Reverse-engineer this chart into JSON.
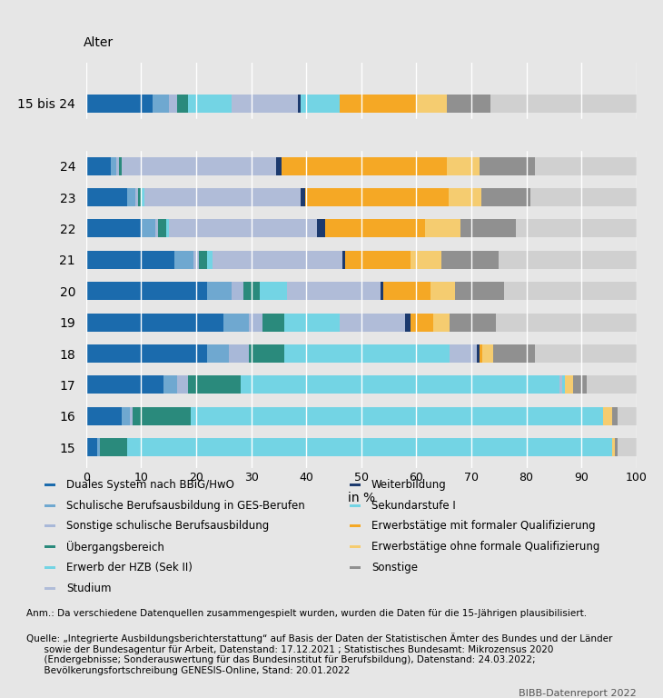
{
  "colors": [
    "#1b6bad",
    "#6fa8d0",
    "#a8b8d8",
    "#2a8a7c",
    "#73d4e4",
    "#b0bcd8",
    "#1c3a6e",
    "#73d4e4",
    "#f5a825",
    "#f5cc70",
    "#909090"
  ],
  "categories": [
    "Duales System nach BBiG/HwO",
    "Schulische Berufsausbildung in GES-Berufen",
    "Sonstige schulische Berufsausbildung",
    "Übergangsbereich",
    "Erwerb der HZB (Sek II)",
    "Studium",
    "Weiterbildung",
    "Sekundarstufe I",
    "Erwerbstätige mit formaler Qualifizierung",
    "Erwerbstätige ohne formale Qualifizierung",
    "Sonstige"
  ],
  "row_order": [
    "15 bis 24",
    "24",
    "23",
    "22",
    "21",
    "20",
    "19",
    "18",
    "17",
    "16",
    "15"
  ],
  "data": {
    "15 bis 24": [
      12.0,
      3.0,
      1.5,
      2.0,
      8.0,
      12.0,
      0.5,
      7.0,
      14.0,
      5.5,
      8.0
    ],
    "24": [
      4.5,
      1.0,
      0.5,
      0.5,
      0.0,
      28.0,
      1.0,
      0.0,
      30.0,
      6.0,
      10.0
    ],
    "23": [
      7.5,
      1.5,
      0.5,
      0.5,
      0.5,
      28.5,
      0.8,
      0.0,
      26.0,
      6.0,
      9.0
    ],
    "22": [
      10.0,
      2.5,
      0.5,
      1.5,
      0.5,
      27.0,
      1.5,
      0.0,
      18.0,
      6.5,
      10.0
    ],
    "21": [
      16.0,
      3.5,
      1.0,
      1.5,
      1.0,
      23.5,
      0.5,
      0.0,
      12.0,
      5.5,
      10.5
    ],
    "20": [
      22.0,
      4.5,
      2.0,
      3.0,
      5.0,
      17.0,
      0.5,
      0.0,
      8.5,
      4.5,
      9.0
    ],
    "19": [
      25.0,
      4.5,
      2.5,
      4.0,
      10.0,
      12.0,
      1.0,
      0.0,
      4.0,
      3.0,
      8.5
    ],
    "18": [
      22.0,
      4.0,
      3.5,
      6.5,
      30.0,
      5.0,
      0.5,
      0.0,
      0.5,
      2.0,
      7.5
    ],
    "17": [
      14.0,
      2.5,
      2.0,
      9.5,
      58.0,
      0.5,
      0.0,
      0.5,
      0.0,
      1.5,
      2.5
    ],
    "16": [
      6.5,
      1.5,
      0.5,
      10.5,
      75.0,
      0.0,
      0.0,
      0.0,
      0.0,
      1.5,
      1.0
    ],
    "15": [
      2.0,
      0.5,
      0.0,
      5.0,
      88.0,
      0.0,
      0.0,
      0.0,
      0.0,
      0.5,
      0.5
    ]
  },
  "background_color": "#e6e6e6",
  "bar_bg_color": "#d0d0d0",
  "xlabel": "in %",
  "footnote_anm": "Anm.: Da verschiedene Datenquellen zusammengespielt wurden, wurden die Daten für die 15-Jährigen plausibilisiert.",
  "footnote_quelle": "Quelle: „Integrierte Ausbildungsberichterstattung“ auf Basis der Daten der Statistischen Ämter des Bundes und der Länder\n      sowie der Bundesagentur für Arbeit, Datenstand: 17.12.2021 ; Statistisches Bundesamt: Mikrozensus 2020\n      (Endergebnisse; Sonderauswertung für das Bundesinstitut für Berufsbildung), Datenstand: 24.03.2022;\n      Bevölkerungsfortschreibung GENESIS-Online, Stand: 20.01.2022",
  "bibb_label": "BIBB-Datenreport 2022",
  "legend_left": [
    "Duales System nach BBiG/HwO",
    "Schulische Berufsausbildung in GES-Berufen",
    "Sonstige schulische Berufsausbildung",
    "Übergangsbereich",
    "Erwerb der HZB (Sek II)",
    "Studium"
  ],
  "legend_right": [
    "Weiterbildung",
    "Sekundarstufe I",
    "Erwerbstätige mit formaler Qualifizierung",
    "Erwerbstätige ohne formale Qualifizierung",
    "Sonstige"
  ],
  "legend_left_idx": [
    0,
    1,
    2,
    3,
    4,
    5
  ],
  "legend_right_idx": [
    6,
    7,
    8,
    9,
    10
  ]
}
